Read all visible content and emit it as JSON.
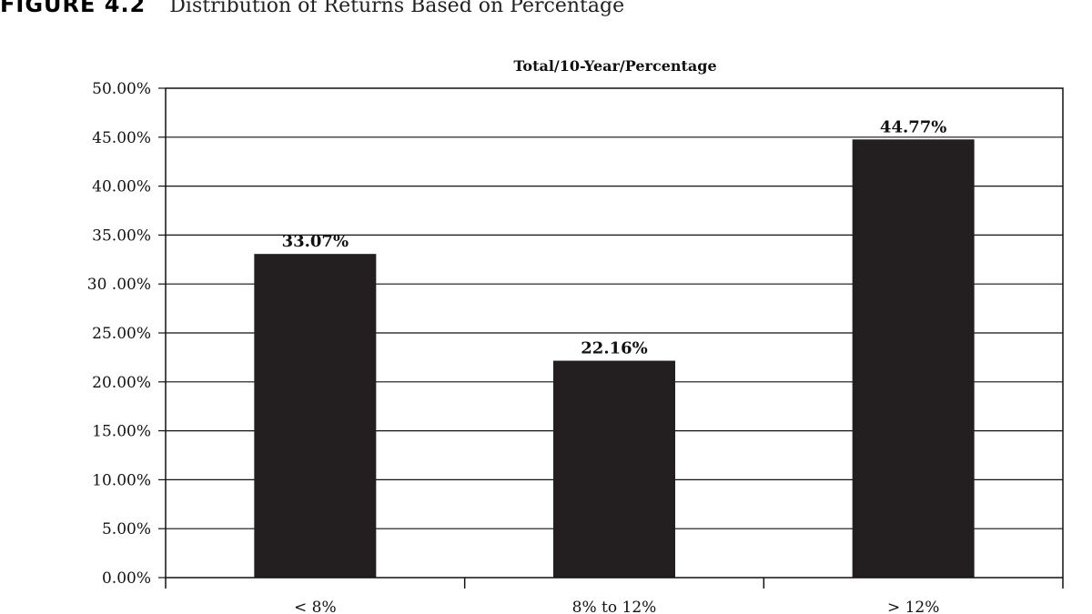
{
  "figure": {
    "label": "FIGURE 4.2",
    "title": "Distribution of Returns Based on Percentage"
  },
  "chart_data": {
    "type": "bar",
    "title": "Total/10-Year/Percentage",
    "categories": [
      "< 8%",
      "8% to 12%",
      "> 12%"
    ],
    "values": [
      33.07,
      22.16,
      44.77
    ],
    "value_labels": [
      "33.07%",
      "22.16%",
      "44.77%"
    ],
    "ylim": [
      0,
      50
    ],
    "yticks": [
      0,
      5,
      10,
      15,
      20,
      25,
      30,
      35,
      40,
      45,
      50
    ],
    "ytick_labels": [
      "0.00%",
      "5.00%",
      "10.00%",
      "15.00%",
      "20.00%",
      "25.00%",
      "30 .00%",
      "35.00%",
      "40.00%",
      "45.00%",
      "50.00%"
    ],
    "xlabel": "",
    "ylabel": "",
    "grid": true,
    "bar_color": "#231f20"
  }
}
